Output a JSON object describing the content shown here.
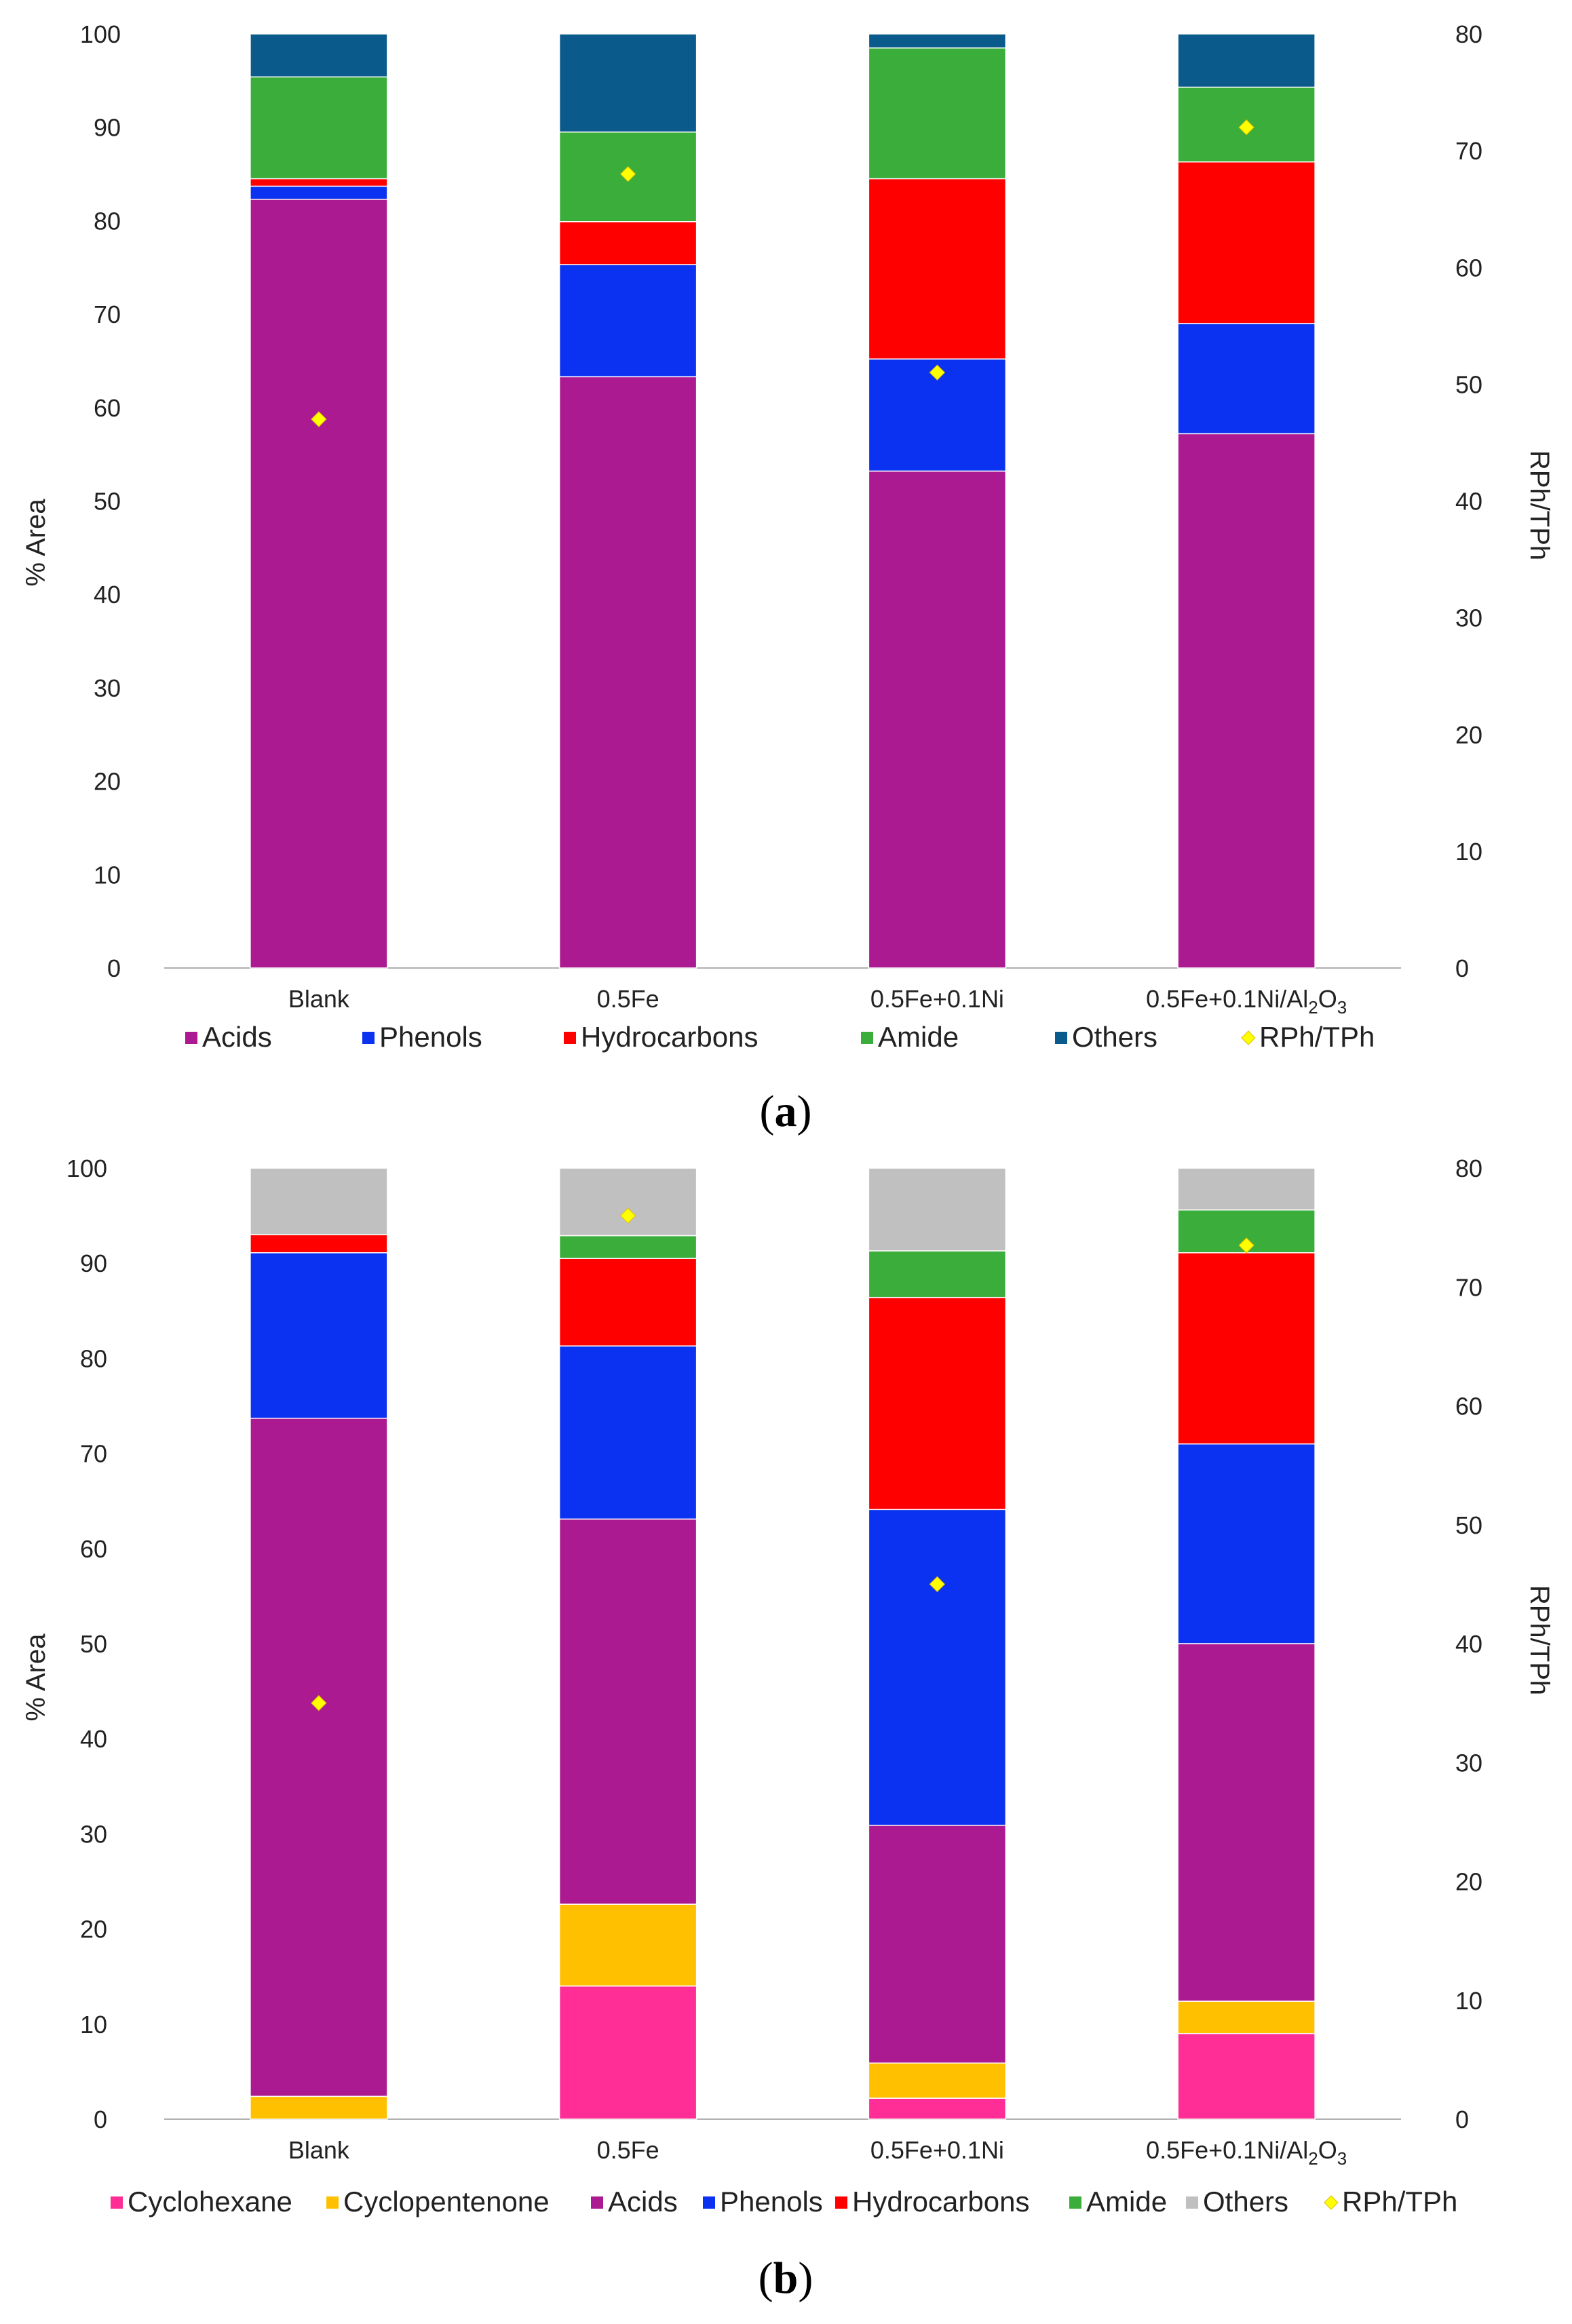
{
  "colors": {
    "Cyclohexane": "#ff2d96",
    "Cyclopentenone": "#ffc000",
    "Acids": "#ac1a92",
    "Phenols": "#0a32f0",
    "Hydrocarbons": "#ff0000",
    "Amide": "#3aad3a",
    "Others_a": "#0a5a8c",
    "Others_b": "#c0c0c0",
    "marker": "#ffff00"
  },
  "chart_data": [
    {
      "type": "bar",
      "stacked": true,
      "panel_label": {
        "open": "(",
        "letter": "a",
        "close": ")"
      },
      "categories": [
        "Blank",
        "0.5Fe",
        "0.5Fe+0.1Ni",
        "0.5Fe+0.1Ni/Al"
      ],
      "category_suffix": {
        "index": 3,
        "sub": "2",
        "mid": "O",
        "sub2": "3"
      },
      "ylabel": "% Area",
      "y2label": "RPh/TPh",
      "ylim": [
        0,
        100
      ],
      "yticks": [
        "0",
        "10",
        "20",
        "30",
        "40",
        "50",
        "60",
        "70",
        "80",
        "90",
        "100"
      ],
      "y2lim": [
        0,
        80
      ],
      "y2ticks": [
        "0",
        "10",
        "20",
        "30",
        "40",
        "50",
        "60",
        "70",
        "80"
      ],
      "series": [
        {
          "name": "Acids",
          "color_key": "Acids",
          "values": [
            82.3,
            63.3,
            53.2,
            57.2
          ]
        },
        {
          "name": "Phenols",
          "color_key": "Phenols",
          "values": [
            1.4,
            12.0,
            12.0,
            11.8
          ]
        },
        {
          "name": "Hydrocarbons",
          "color_key": "Hydrocarbons",
          "values": [
            0.8,
            4.6,
            19.3,
            17.3
          ]
        },
        {
          "name": "Amide",
          "color_key": "Amide",
          "values": [
            10.9,
            9.6,
            14.0,
            8.0
          ]
        },
        {
          "name": "Others",
          "color_key": "Others_a",
          "values": [
            4.6,
            10.5,
            1.5,
            5.7
          ]
        }
      ],
      "marker_series": {
        "name": "RPh/TPh",
        "axis": "right",
        "values": [
          47,
          68,
          51,
          72
        ]
      }
    },
    {
      "type": "bar",
      "stacked": true,
      "panel_label": {
        "open": "(",
        "letter": "b",
        "close": ")"
      },
      "categories": [
        "Blank",
        "0.5Fe",
        "0.5Fe+0.1Ni",
        "0.5Fe+0.1Ni/Al"
      ],
      "category_suffix": {
        "index": 3,
        "sub": "2",
        "mid": "O",
        "sub2": "3"
      },
      "ylabel": "% Area",
      "y2label": "RPh/TPh",
      "ylim": [
        0,
        100
      ],
      "yticks": [
        "0",
        "10",
        "20",
        "30",
        "40",
        "50",
        "60",
        "70",
        "80",
        "90",
        "100"
      ],
      "y2lim": [
        0,
        80
      ],
      "y2ticks": [
        "0",
        "10",
        "20",
        "30",
        "40",
        "50",
        "60",
        "70",
        "80"
      ],
      "series": [
        {
          "name": "Cyclohexane",
          "color_key": "Cyclohexane",
          "values": [
            0,
            14.0,
            2.2,
            9.0
          ]
        },
        {
          "name": "Cyclopentenone",
          "color_key": "Cyclopentenone",
          "values": [
            2.4,
            8.6,
            3.7,
            3.4
          ]
        },
        {
          "name": "Acids",
          "color_key": "Acids",
          "values": [
            71.3,
            40.5,
            25.0,
            37.6
          ]
        },
        {
          "name": "Phenols",
          "color_key": "Phenols",
          "values": [
            17.4,
            18.2,
            33.2,
            21.0
          ]
        },
        {
          "name": "Hydrocarbons",
          "color_key": "Hydrocarbons",
          "values": [
            1.9,
            9.2,
            22.3,
            20.1
          ]
        },
        {
          "name": "Amide",
          "color_key": "Amide",
          "values": [
            0,
            2.4,
            4.9,
            4.5
          ]
        },
        {
          "name": "Others",
          "color_key": "Others_b",
          "values": [
            7.0,
            7.1,
            8.7,
            4.4
          ]
        }
      ],
      "marker_series": {
        "name": "RPh/TPh",
        "axis": "right",
        "values": [
          35,
          76,
          45,
          73.5
        ]
      }
    }
  ]
}
